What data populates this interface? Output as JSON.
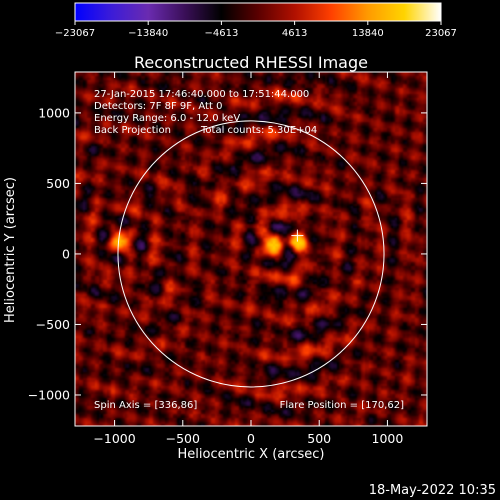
{
  "chart_data": {
    "type": "heatmap",
    "title": "Reconstructed RHESSI Image",
    "xlabel": "Heliocentric X (arcsec)",
    "ylabel": "Heliocentric Y (arcsec)",
    "xlim": [
      -1290,
      1290
    ],
    "ylim": [
      -1220,
      1290
    ],
    "x_ticks": [
      {
        "value": -1000,
        "label": "−1000"
      },
      {
        "value": -500,
        "label": "−500"
      },
      {
        "value": 0,
        "label": "0"
      },
      {
        "value": 500,
        "label": "500"
      },
      {
        "value": 1000,
        "label": "1000"
      }
    ],
    "y_ticks": [
      {
        "value": -1000,
        "label": "−1000"
      },
      {
        "value": -500,
        "label": "−500"
      },
      {
        "value": 0,
        "label": "0"
      },
      {
        "value": 500,
        "label": "500"
      },
      {
        "value": 1000,
        "label": "1000"
      }
    ],
    "colorbar": {
      "min": -23067,
      "max": 23067,
      "tick_labels": [
        "−23067",
        "−13840",
        "−4613",
        "4613",
        "13840",
        "23067"
      ],
      "colors": [
        "#0000ff",
        "#3c1cd8",
        "#6a2bb0",
        "#3a0f58",
        "#000000",
        "#5a0000",
        "#b01000",
        "#ff4000",
        "#ff9a00",
        "#ffd400",
        "#ffffff"
      ]
    },
    "annotations": {
      "time_range": "27-Jan-2015 17:46:40.000 to 17:51:44.000",
      "detectors": "Detectors: 7F 8F 9F, Att 0",
      "energy_range": "Energy Range: 6.0 - 12.0 keV",
      "method": "Back Projection",
      "total_counts": "Total counts: 5.30E+04",
      "spin_axis": "Spin Axis = [336,86]",
      "flare_position": "Flare Position = [170,62]"
    },
    "solar_limb_radius_arcsec": 975,
    "flare_marker": [
      340,
      130
    ],
    "sources": [
      {
        "x": 170,
        "y": 62,
        "strength": 1.0
      },
      {
        "x": 340,
        "y": 80,
        "strength": 0.9
      },
      {
        "x": -960,
        "y": 90,
        "strength": 0.75
      }
    ]
  },
  "footer": {
    "date": "18-May-2022 10:35"
  }
}
